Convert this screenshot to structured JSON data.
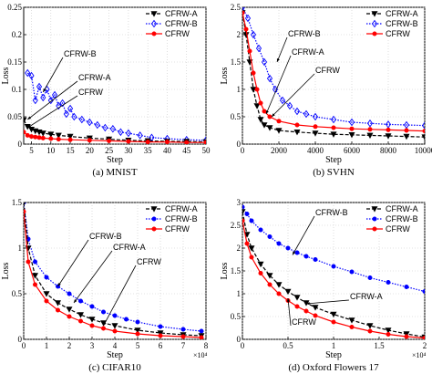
{
  "chart_data": [
    {
      "type": "line",
      "caption": "(a)  MNIST",
      "xlabel": "Step",
      "ylabel": "Loss",
      "xlim": [
        3,
        50
      ],
      "ylim": [
        0,
        0.25
      ],
      "xticks": [
        "5",
        "10",
        "15",
        "20",
        "25",
        "30",
        "35",
        "40",
        "45",
        "50"
      ],
      "yticks": [
        "0",
        "0.05",
        "0.1",
        "0.15",
        "0.2",
        "0.25"
      ],
      "grid": true,
      "legend": "top-right",
      "series": [
        {
          "name": "CFRW-A",
          "color": "#000000",
          "marker": "triangle-down",
          "dash": "dashed",
          "x": [
            3,
            4,
            5,
            6,
            7,
            8,
            10,
            12,
            15,
            20,
            25,
            30,
            35,
            40,
            45,
            50
          ],
          "y": [
            0.044,
            0.032,
            0.027,
            0.024,
            0.022,
            0.02,
            0.018,
            0.016,
            0.014,
            0.011,
            0.009,
            0.007,
            0.006,
            0.005,
            0.005,
            0.004
          ]
        },
        {
          "name": "CFRW-B",
          "color": "#0000ff",
          "marker": "diamond",
          "dash": "dotted",
          "x": [
            4,
            5,
            6,
            7,
            8,
            9,
            10,
            11,
            12,
            13,
            14,
            15,
            16,
            18,
            20,
            22,
            24,
            26,
            28,
            30,
            33,
            36,
            40,
            45,
            50
          ],
          "y": [
            0.13,
            0.125,
            0.08,
            0.105,
            0.085,
            0.1,
            0.08,
            0.09,
            0.07,
            0.075,
            0.055,
            0.065,
            0.05,
            0.045,
            0.04,
            0.035,
            0.03,
            0.028,
            0.022,
            0.02,
            0.016,
            0.012,
            0.01,
            0.008,
            0.007
          ]
        },
        {
          "name": "CFRW",
          "color": "#ff0000",
          "marker": "circle",
          "dash": "solid",
          "x": [
            3,
            4,
            5,
            6,
            7,
            8,
            10,
            12,
            15,
            20,
            25,
            30,
            35,
            40,
            45,
            50
          ],
          "y": [
            0.022,
            0.016,
            0.014,
            0.013,
            0.012,
            0.011,
            0.01,
            0.009,
            0.008,
            0.007,
            0.006,
            0.005,
            0.004,
            0.004,
            0.003,
            0.003
          ]
        }
      ],
      "annotations": [
        "CFRW-B",
        "CFRW-A",
        "CFRW"
      ]
    },
    {
      "type": "line",
      "caption": "(b)  SVHN",
      "xlabel": "Step",
      "ylabel": "Loss",
      "xlim": [
        0,
        10000
      ],
      "ylim": [
        0,
        2.5
      ],
      "xticks": [
        "0",
        "2000",
        "4000",
        "6000",
        "8000",
        "10000"
      ],
      "yticks": [
        "0",
        "0.5",
        "1",
        "1.5",
        "2",
        "2.5"
      ],
      "grid": true,
      "legend": "top-right",
      "series": [
        {
          "name": "CFRW-A",
          "color": "#000000",
          "marker": "triangle-down",
          "dash": "dashed",
          "x": [
            0,
            200,
            400,
            600,
            800,
            1000,
            1200,
            1500,
            2000,
            3000,
            4000,
            5000,
            6000,
            7000,
            8000,
            9000,
            10000
          ],
          "y": [
            2.4,
            2.0,
            1.5,
            1.0,
            0.7,
            0.45,
            0.35,
            0.3,
            0.25,
            0.22,
            0.2,
            0.18,
            0.17,
            0.16,
            0.15,
            0.14,
            0.13
          ]
        },
        {
          "name": "CFRW-B",
          "color": "#0000ff",
          "marker": "diamond",
          "dash": "dotted",
          "x": [
            0,
            300,
            600,
            900,
            1200,
            1500,
            1800,
            2200,
            2600,
            3000,
            3500,
            4000,
            5000,
            6000,
            7000,
            8000,
            9000,
            10000
          ],
          "y": [
            2.5,
            2.3,
            2.0,
            1.75,
            1.5,
            1.2,
            1.0,
            0.8,
            0.7,
            0.6,
            0.55,
            0.5,
            0.45,
            0.4,
            0.38,
            0.36,
            0.35,
            0.34
          ]
        },
        {
          "name": "CFRW",
          "color": "#ff0000",
          "marker": "circle",
          "dash": "solid",
          "x": [
            0,
            200,
            400,
            600,
            800,
            1000,
            1200,
            1500,
            2000,
            3000,
            4000,
            5000,
            6000,
            7000,
            8000,
            9000,
            10000
          ],
          "y": [
            2.4,
            2.1,
            1.7,
            1.3,
            1.0,
            0.75,
            0.6,
            0.5,
            0.42,
            0.35,
            0.32,
            0.3,
            0.28,
            0.27,
            0.26,
            0.25,
            0.24
          ]
        }
      ],
      "annotations": [
        "CFRW-B",
        "CFRW-A",
        "CFRW"
      ]
    },
    {
      "type": "line",
      "caption": "(c)  CIFAR10",
      "xlabel": "Step",
      "ylabel": "Loss",
      "xlim": [
        0,
        80000
      ],
      "ylim": [
        0,
        1.5
      ],
      "xticks": [
        "0",
        "1",
        "2",
        "3",
        "4",
        "5",
        "6",
        "7",
        "8"
      ],
      "xexponent": "×10⁴",
      "yticks": [
        "0",
        "0.5",
        "1",
        "1.5"
      ],
      "grid": true,
      "legend": "top-right",
      "series": [
        {
          "name": "CFRW-A",
          "color": "#000000",
          "marker": "triangle-down",
          "dash": "dashed",
          "x": [
            0,
            2000,
            5000,
            10000,
            15000,
            20000,
            25000,
            30000,
            35000,
            40000,
            50000,
            60000,
            70000,
            78000
          ],
          "y": [
            1.5,
            1.0,
            0.7,
            0.5,
            0.4,
            0.33,
            0.27,
            0.22,
            0.18,
            0.15,
            0.1,
            0.07,
            0.05,
            0.04
          ]
        },
        {
          "name": "CFRW-B",
          "color": "#0000ff",
          "marker": "circle",
          "dash": "dotted",
          "x": [
            0,
            2000,
            5000,
            10000,
            15000,
            20000,
            25000,
            30000,
            35000,
            40000,
            45000,
            50000,
            60000,
            70000,
            78000
          ],
          "y": [
            1.5,
            1.1,
            0.85,
            0.68,
            0.58,
            0.5,
            0.42,
            0.36,
            0.3,
            0.26,
            0.22,
            0.19,
            0.14,
            0.11,
            0.09
          ]
        },
        {
          "name": "CFRW",
          "color": "#ff0000",
          "marker": "circle",
          "dash": "solid",
          "x": [
            0,
            2000,
            5000,
            10000,
            15000,
            20000,
            25000,
            30000,
            35000,
            40000,
            50000,
            60000,
            70000,
            78000
          ],
          "y": [
            1.4,
            0.85,
            0.6,
            0.42,
            0.32,
            0.25,
            0.2,
            0.15,
            0.12,
            0.09,
            0.06,
            0.04,
            0.03,
            0.02
          ]
        }
      ],
      "annotations": [
        "CFRW-B",
        "CFRW-A",
        "CFRW"
      ]
    },
    {
      "type": "line",
      "caption": "(d)  Oxford Flowers 17",
      "xlabel": "Step",
      "ylabel": "Loss",
      "xlim": [
        0,
        20000
      ],
      "ylim": [
        0,
        3
      ],
      "xticks": [
        "0",
        "0.5",
        "1",
        "1.5",
        "2"
      ],
      "xexponent": "×10⁴",
      "yticks": [
        "0",
        "0.5",
        "1",
        "1.5",
        "2",
        "2.5",
        "3"
      ],
      "grid": true,
      "legend": "top-right",
      "series": [
        {
          "name": "CFRW-A",
          "color": "#000000",
          "marker": "triangle-down",
          "dash": "dashed",
          "x": [
            0,
            500,
            1000,
            2000,
            3000,
            4000,
            5000,
            6000,
            7000,
            8000,
            10000,
            12000,
            14000,
            16000,
            18000,
            20000
          ],
          "y": [
            2.8,
            2.3,
            2.0,
            1.65,
            1.4,
            1.2,
            1.05,
            0.92,
            0.8,
            0.7,
            0.55,
            0.42,
            0.3,
            0.2,
            0.12,
            0.05
          ]
        },
        {
          "name": "CFRW-B",
          "color": "#0000ff",
          "marker": "circle",
          "dash": "dotted",
          "x": [
            0,
            500,
            1000,
            2000,
            3000,
            4000,
            5000,
            6000,
            7000,
            8000,
            10000,
            12000,
            14000,
            16000,
            18000,
            20000
          ],
          "y": [
            2.9,
            2.75,
            2.6,
            2.4,
            2.25,
            2.1,
            2.0,
            1.9,
            1.82,
            1.75,
            1.6,
            1.48,
            1.35,
            1.25,
            1.15,
            1.05
          ]
        },
        {
          "name": "CFRW",
          "color": "#ff0000",
          "marker": "circle",
          "dash": "solid",
          "x": [
            0,
            500,
            1000,
            2000,
            3000,
            4000,
            5000,
            6000,
            7000,
            8000,
            10000,
            12000,
            14000,
            16000,
            18000,
            20000
          ],
          "y": [
            2.6,
            2.1,
            1.8,
            1.45,
            1.2,
            1.0,
            0.85,
            0.72,
            0.62,
            0.52,
            0.38,
            0.27,
            0.18,
            0.11,
            0.06,
            0.03
          ]
        }
      ],
      "annotations": [
        "CFRW-B",
        "CFRW-A",
        "CFRW"
      ]
    }
  ]
}
